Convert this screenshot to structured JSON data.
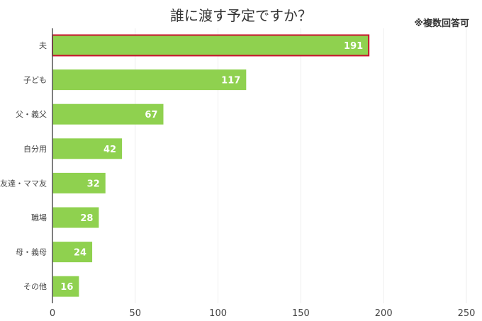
{
  "chart_data": {
    "type": "bar",
    "orientation": "horizontal",
    "title": "誰に渡す予定ですか？",
    "subtitle": "※複数回答可",
    "categories": [
      "夫",
      "子ども",
      "父・義父",
      "自分用",
      "友達・ママ友",
      "職場",
      "母・義母",
      "その他"
    ],
    "values": [
      191,
      117,
      67,
      42,
      32,
      28,
      24,
      16
    ],
    "highlight": "夫",
    "xlim": [
      0,
      250
    ],
    "xticks": [
      0,
      50,
      100,
      150,
      200,
      250
    ],
    "xlabel": "",
    "ylabel": "",
    "grid": true,
    "colors": {
      "bar": "#8fd14f",
      "highlight_border": "#c8102e",
      "axis": "#555555",
      "grid": "#eeeeee"
    }
  }
}
